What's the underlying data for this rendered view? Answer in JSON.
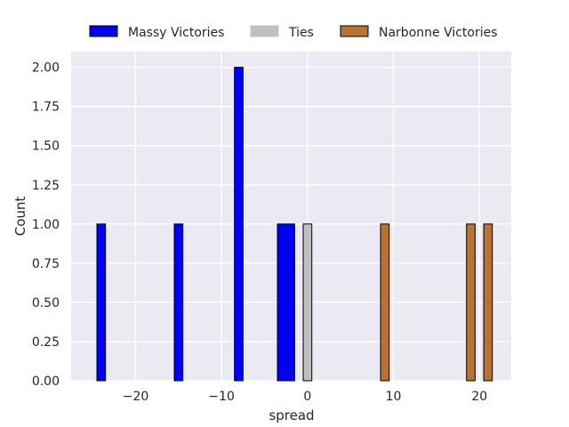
{
  "chart_data": {
    "type": "bar",
    "xlabel": "spread",
    "ylabel": "Count",
    "xlim": [
      -27.5,
      23.7
    ],
    "ylim": [
      0,
      2.1
    ],
    "bin_width": 1.0,
    "x_ticks": [
      -20,
      -10,
      0,
      10,
      20
    ],
    "x_tick_labels": [
      "−20",
      "−10",
      "0",
      "10",
      "20"
    ],
    "y_ticks": [
      0,
      0.25,
      0.5,
      0.75,
      1.0,
      1.25,
      1.5,
      1.75,
      2.0
    ],
    "y_tick_labels": [
      "0.00",
      "0.25",
      "0.50",
      "0.75",
      "1.00",
      "1.25",
      "1.50",
      "1.75",
      "2.00"
    ],
    "grid": true,
    "legend_position": "top",
    "series": [
      {
        "name": "Massy Victories",
        "color": "#0000ff",
        "bars": [
          {
            "x": -24,
            "count": 1
          },
          {
            "x": -15,
            "count": 1
          },
          {
            "x": -8,
            "count": 2
          },
          {
            "x": -3,
            "count": 1
          },
          {
            "x": -2,
            "count": 1
          }
        ]
      },
      {
        "name": "Ties",
        "color": "#c0c0c0",
        "bars": [
          {
            "x": 0,
            "count": 1
          }
        ]
      },
      {
        "name": "Narbonne Victories",
        "color": "#b87333",
        "bars": [
          {
            "x": 9,
            "count": 1
          },
          {
            "x": 19,
            "count": 1
          },
          {
            "x": 21,
            "count": 1
          }
        ]
      }
    ]
  }
}
